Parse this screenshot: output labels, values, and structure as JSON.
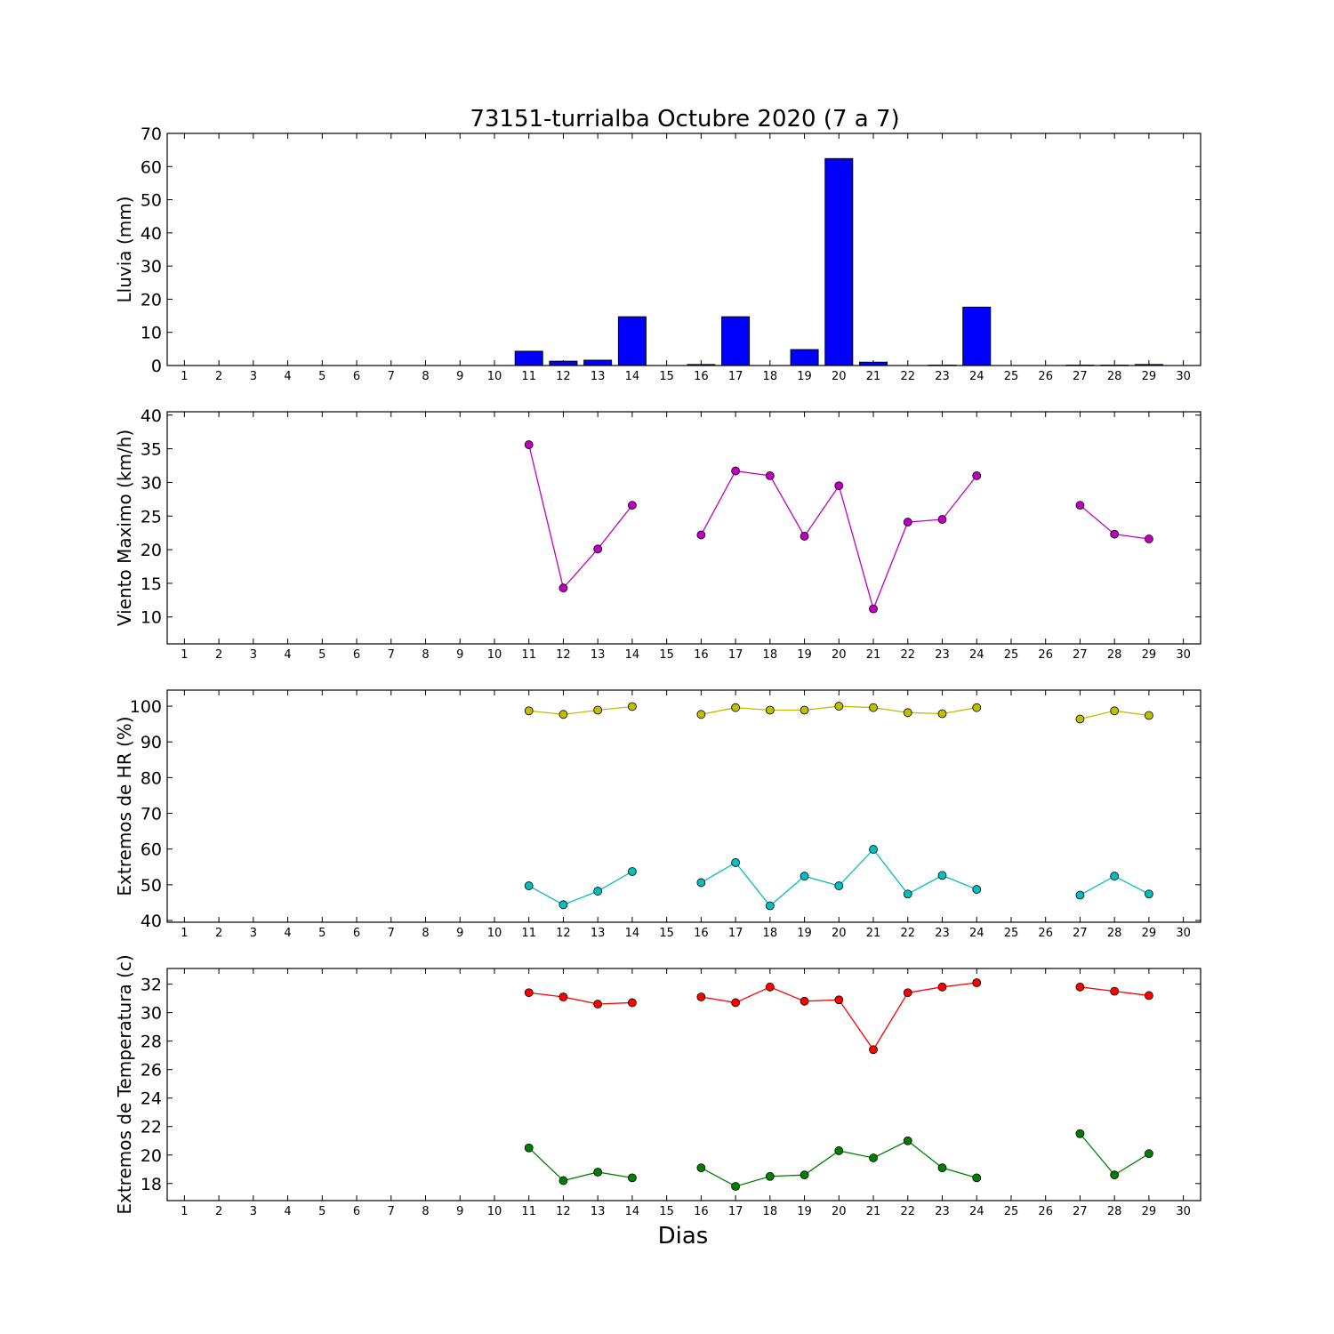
{
  "title": "73151-turrialba Octubre 2020  (7 a 7)",
  "xlabel": "Dias",
  "days": [
    1,
    2,
    3,
    4,
    5,
    6,
    7,
    8,
    9,
    10,
    11,
    12,
    13,
    14,
    15,
    16,
    17,
    18,
    19,
    20,
    21,
    22,
    23,
    24,
    25,
    26,
    27,
    28,
    29,
    30
  ],
  "chart_data": [
    {
      "type": "bar",
      "ylabel": "Lluvia (mm)",
      "ylim": [
        0,
        70
      ],
      "yticks": [
        0,
        10,
        20,
        30,
        40,
        50,
        60,
        70
      ],
      "xlim": [
        0.5,
        30.5
      ],
      "series": [
        {
          "color": "#0000ff",
          "x": [
            11,
            12,
            13,
            14,
            16,
            17,
            19,
            20,
            21,
            23,
            24,
            27,
            28,
            29
          ],
          "values": [
            4.3,
            1.3,
            1.6,
            14.7,
            0.3,
            14.7,
            4.8,
            62.4,
            1.0,
            0.1,
            17.6,
            0.1,
            0.1,
            0.3
          ]
        }
      ]
    },
    {
      "type": "line",
      "ylabel": "Viento Maximo (km/h)",
      "ylim": [
        6,
        40.5
      ],
      "yticks": [
        10,
        15,
        20,
        25,
        30,
        35,
        40
      ],
      "xlim": [
        0.5,
        30.5
      ],
      "series": [
        {
          "color": "#bf00bf",
          "x": [
            11,
            12,
            13,
            14,
            15,
            16,
            17,
            18,
            19,
            20,
            21,
            22,
            23,
            24,
            25,
            26,
            27,
            28,
            29
          ],
          "values": [
            35.6,
            14.3,
            20.1,
            26.6,
            null,
            22.2,
            31.7,
            31.0,
            22.0,
            29.5,
            11.2,
            24.1,
            24.5,
            31.0,
            null,
            null,
            26.6,
            22.3,
            21.6
          ]
        }
      ]
    },
    {
      "type": "line",
      "ylabel": "Extremos de HR (%)",
      "ylim": [
        39.5,
        104.5
      ],
      "yticks": [
        40,
        50,
        60,
        70,
        80,
        90,
        100
      ],
      "xlim": [
        0.5,
        30.5
      ],
      "series": [
        {
          "color": "#bfbf00",
          "x": [
            11,
            12,
            13,
            14,
            15,
            16,
            17,
            18,
            19,
            20,
            21,
            22,
            23,
            24,
            25,
            26,
            27,
            28,
            29
          ],
          "values": [
            98.7,
            97.7,
            98.9,
            99.9,
            null,
            97.7,
            99.6,
            98.9,
            98.9,
            100.0,
            99.6,
            98.2,
            97.9,
            99.6,
            null,
            null,
            96.4,
            98.7,
            97.4
          ]
        },
        {
          "color": "#00bfbf",
          "x": [
            11,
            12,
            13,
            14,
            15,
            16,
            17,
            18,
            19,
            20,
            21,
            22,
            23,
            24,
            25,
            26,
            27,
            28,
            29
          ],
          "values": [
            49.7,
            44.4,
            48.2,
            53.7,
            null,
            50.6,
            56.2,
            44.1,
            52.4,
            49.7,
            59.9,
            47.4,
            52.6,
            48.7,
            null,
            null,
            47.1,
            52.4,
            47.4
          ]
        }
      ]
    },
    {
      "type": "line",
      "ylabel": "Extremos de Temperatura (c)",
      "ylim": [
        16.8,
        33.1
      ],
      "yticks": [
        18,
        20,
        22,
        24,
        26,
        28,
        30,
        32
      ],
      "xlim": [
        0.5,
        30.5
      ],
      "series": [
        {
          "color": "#ff0000",
          "x": [
            11,
            12,
            13,
            14,
            15,
            16,
            17,
            18,
            19,
            20,
            21,
            22,
            23,
            24,
            25,
            26,
            27,
            28,
            29
          ],
          "values": [
            31.4,
            31.1,
            30.6,
            30.7,
            null,
            31.1,
            30.7,
            31.8,
            30.8,
            30.9,
            27.4,
            31.4,
            31.8,
            32.1,
            null,
            null,
            31.8,
            31.5,
            31.2
          ]
        },
        {
          "color": "#008000",
          "x": [
            11,
            12,
            13,
            14,
            15,
            16,
            17,
            18,
            19,
            20,
            21,
            22,
            23,
            24,
            25,
            26,
            27,
            28,
            29
          ],
          "values": [
            20.5,
            18.2,
            18.8,
            18.4,
            null,
            19.1,
            17.8,
            18.5,
            18.6,
            20.3,
            19.8,
            21.0,
            19.1,
            18.4,
            null,
            null,
            21.5,
            18.6,
            20.1
          ]
        }
      ]
    }
  ]
}
